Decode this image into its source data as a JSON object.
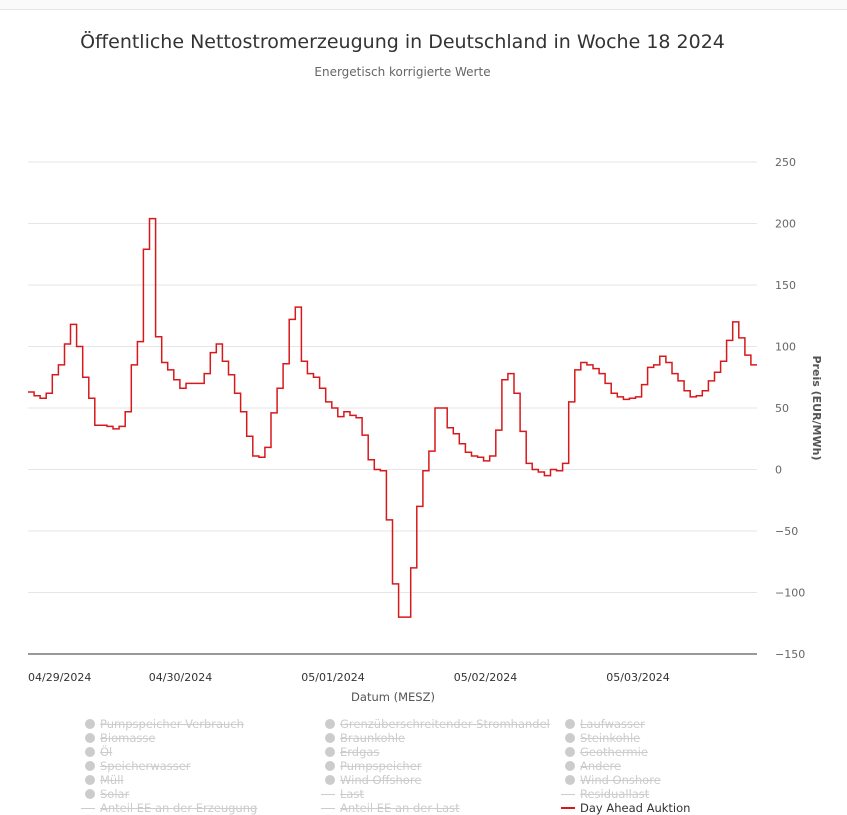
{
  "chart_data": {
    "type": "line",
    "step": true,
    "title": "Öffentliche Nettostromerzeugung in Deutschland in Woche 18 2024",
    "subtitle": "Energetisch korrigierte Werte",
    "xlabel": "Datum (MESZ)",
    "ylabel": "Preis (EUR/MWh)",
    "x_ticks": [
      "04/29/2024",
      "04/30/2024",
      "05/01/2024",
      "05/02/2024",
      "05/03/2024"
    ],
    "y_ticks": [
      250,
      200,
      150,
      100,
      50,
      0,
      -50,
      -100,
      -150
    ],
    "ylim": [
      -150,
      250
    ],
    "y_axis_side": "right",
    "grid": true,
    "series": [
      {
        "name": "Day Ahead Auktion",
        "color": "#d7191c",
        "values": [
          63,
          60,
          58,
          62,
          77,
          85,
          102,
          118,
          100,
          75,
          58,
          36,
          36,
          35,
          33,
          35,
          47,
          85,
          104,
          179,
          204,
          108,
          87,
          81,
          73,
          66,
          70,
          70,
          70,
          78,
          95,
          102,
          88,
          77,
          62,
          47,
          27,
          11,
          10,
          18,
          46,
          66,
          86,
          122,
          132,
          88,
          78,
          75,
          66,
          55,
          50,
          43,
          47,
          44,
          42,
          28,
          8,
          0,
          -1,
          -41,
          -93,
          -120,
          -120,
          -80,
          -30,
          -1,
          15,
          50,
          50,
          34,
          29,
          21,
          14,
          11,
          10,
          7,
          11,
          32,
          73,
          78,
          62,
          31,
          5,
          0,
          -2,
          -5,
          0,
          -1,
          5,
          55,
          81,
          87,
          85,
          82,
          78,
          70,
          62,
          59,
          57,
          58,
          59,
          69,
          83,
          85,
          92,
          87,
          78,
          72,
          64,
          59,
          60,
          64,
          72,
          79,
          88,
          105,
          120,
          107,
          93,
          85
        ]
      }
    ]
  },
  "legend": {
    "items": [
      {
        "label": "Pumpspeicher Verbrauch",
        "marker": "dot",
        "active": false
      },
      {
        "label": "Grenzüberschreitender Stromhandel",
        "marker": "dot",
        "active": false
      },
      {
        "label": "Laufwasser",
        "marker": "dot",
        "active": false
      },
      {
        "label": "Biomasse",
        "marker": "dot",
        "active": false
      },
      {
        "label": "Braunkohle",
        "marker": "dot",
        "active": false
      },
      {
        "label": "Steinkohle",
        "marker": "dot",
        "active": false
      },
      {
        "label": "Öl",
        "marker": "dot",
        "active": false
      },
      {
        "label": "Erdgas",
        "marker": "dot",
        "active": false
      },
      {
        "label": "Geothermie",
        "marker": "dot",
        "active": false
      },
      {
        "label": "Speicherwasser",
        "marker": "dot",
        "active": false
      },
      {
        "label": "Pumpspeicher",
        "marker": "dot",
        "active": false
      },
      {
        "label": "Andere",
        "marker": "dot",
        "active": false
      },
      {
        "label": "Müll",
        "marker": "dot",
        "active": false
      },
      {
        "label": "Wind Offshore",
        "marker": "dot",
        "active": false
      },
      {
        "label": "Wind Onshore",
        "marker": "dot",
        "active": false
      },
      {
        "label": "Solar",
        "marker": "dot",
        "active": false
      },
      {
        "label": "Last",
        "marker": "line",
        "active": false
      },
      {
        "label": "Residuallast",
        "marker": "line",
        "active": false
      },
      {
        "label": "Anteil EE an der Erzeugung",
        "marker": "line",
        "active": false
      },
      {
        "label": "Anteil EE an der Last",
        "marker": "line",
        "active": false
      },
      {
        "label": "Day Ahead Auktion",
        "marker": "line",
        "active": true
      }
    ]
  }
}
